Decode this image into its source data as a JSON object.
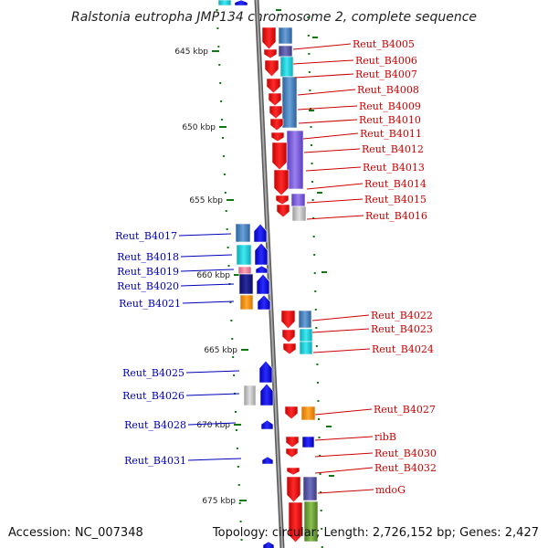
{
  "title": "Ralstonia eutropha JMP134 chromosome 2, complete sequence",
  "footer": {
    "accession": "Accession: NC_007348",
    "topology": "Topology: circular; Length: 2,726,152 bp; Genes: 2,427"
  },
  "colors": {
    "right_label": "#cc0000",
    "left_label": "#0000bb",
    "reverse_gene": "#ee0000",
    "forward_gene": "#0000ee",
    "kbp_tick": "#117711",
    "backbone": "#888888"
  },
  "ruler": [
    {
      "label": "645 kbp",
      "kbp": 645
    },
    {
      "label": "650 kbp",
      "kbp": 650
    },
    {
      "label": "655 kbp",
      "kbp": 655
    },
    {
      "label": "660 kbp",
      "kbp": 660
    },
    {
      "label": "665 kbp",
      "kbp": 665
    },
    {
      "label": "670 kbp",
      "kbp": 670
    },
    {
      "label": "675 kbp",
      "kbp": 675
    }
  ],
  "right_labels": [
    "Reut_B4005",
    "Reut_B4006",
    "Reut_B4007",
    "Reut_B4008",
    "Reut_B4009",
    "Reut_B4010",
    "Reut_B4011",
    "Reut_B4012",
    "Reut_B4013",
    "Reut_B4014",
    "Reut_B4015",
    "Reut_B4016",
    "Reut_B4022",
    "Reut_B4023",
    "Reut_B4024",
    "Reut_B4027",
    "ribB",
    "Reut_B4030",
    "Reut_B4032",
    "mdoG"
  ],
  "left_labels": [
    "Reut_B4017",
    "Reut_B4018",
    "Reut_B4019",
    "Reut_B4020",
    "Reut_B4021",
    "Reut_B4025",
    "Reut_B4026",
    "Reut_B4028",
    "Reut_B4031"
  ]
}
